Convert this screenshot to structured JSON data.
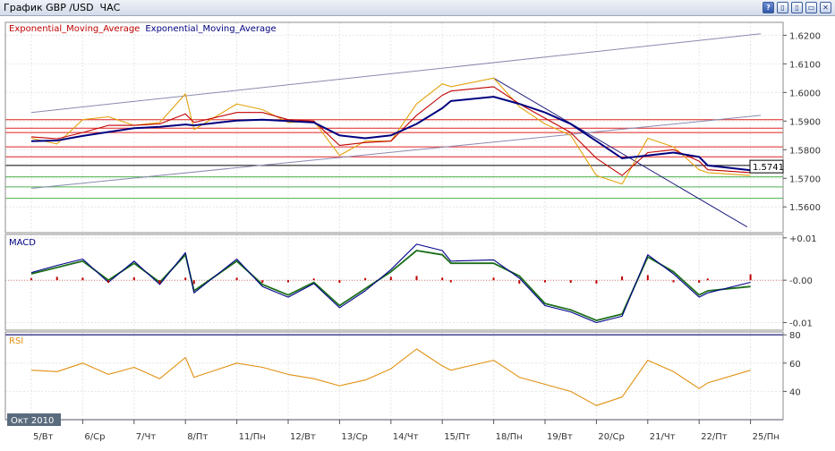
{
  "window": {
    "title": "График GBP /USD  ЧАС",
    "buttons": {
      "help": "?",
      "restore": "▯",
      "tile": "▯",
      "minimize": "▭",
      "close": "✕"
    }
  },
  "chart_data": [
    {
      "type": "line",
      "panel": "price",
      "legend": [
        "Exponential_Moving_Average",
        "Exponential_Moving_Average"
      ],
      "legend_colors": [
        "#c00000",
        "#000080"
      ],
      "ylim": [
        1.551,
        1.6245
      ],
      "yticks": [
        "1.6200",
        "1.6100",
        "1.6000",
        "1.5900",
        "1.5800",
        "1.5700",
        "1.5600"
      ],
      "ytick_values": [
        1.62,
        1.61,
        1.6,
        1.59,
        1.58,
        1.57,
        1.56
      ],
      "current_price_label": "1.5741",
      "current_price": 1.5741,
      "x": [
        5,
        5.5,
        6,
        6.5,
        7,
        7.5,
        8,
        8.5,
        11,
        11.5,
        12,
        12.5,
        13,
        13.5,
        14,
        14.5,
        15,
        15.5,
        18,
        18.5,
        19,
        19.5,
        20,
        20.5,
        21,
        21.5,
        22,
        22.5,
        25
      ],
      "series": [
        {
          "values": [
            1.584,
            1.582,
            1.5905,
            1.5915,
            1.5885,
            1.5895,
            1.5995,
            1.587,
            1.596,
            1.594,
            1.5895,
            1.59,
            1.578,
            1.583,
            1.583,
            1.596,
            1.603,
            1.602,
            1.605,
            1.595,
            1.589,
            1.585,
            1.571,
            1.568,
            1.584,
            1.581,
            1.573,
            1.572,
            1.571
          ],
          "color": "#e3a30c"
        },
        {
          "values": [
            1.5845,
            1.5838,
            1.586,
            1.5885,
            1.5885,
            1.589,
            1.5925,
            1.5895,
            1.593,
            1.593,
            1.5905,
            1.59,
            1.5815,
            1.5825,
            1.583,
            1.592,
            1.599,
            1.6005,
            1.602,
            1.596,
            1.591,
            1.586,
            1.577,
            1.571,
            1.579,
            1.58,
            1.576,
            1.573,
            1.572
          ],
          "color": "#c00000"
        },
        {
          "values": [
            1.583,
            1.5832,
            1.5848,
            1.5862,
            1.5875,
            1.588,
            1.5888,
            1.5885,
            1.5902,
            1.5905,
            1.59,
            1.5895,
            1.585,
            1.584,
            1.585,
            1.589,
            1.5945,
            1.597,
            1.5985,
            1.596,
            1.593,
            1.589,
            1.583,
            1.577,
            1.578,
            1.579,
            1.5775,
            1.5745,
            1.5728
          ],
          "color": "#000080"
        }
      ],
      "horizontal_levels_red": [
        1.5905,
        1.5875,
        1.586,
        1.581,
        1.5775
      ],
      "horizontal_levels_black": [
        1.5745
      ],
      "horizontal_levels_green": [
        1.5705,
        1.567,
        1.563
      ],
      "trend_lines": [
        {
          "from": [
            5,
            1.593
          ],
          "to": [
            25.2,
            1.6205
          ],
          "color": "#8a8ab0"
        },
        {
          "from": [
            5,
            1.5665
          ],
          "to": [
            25.2,
            1.592
          ],
          "color": "#8a8ab0"
        },
        {
          "from": [
            18,
            1.605
          ],
          "to": [
            24.8,
            1.553
          ],
          "color": "#202080"
        }
      ]
    },
    {
      "type": "line",
      "panel": "macd",
      "title": "MACD",
      "ylim": [
        -0.0118,
        0.0108
      ],
      "yticks": [
        "+0.01",
        "-0.00",
        "-0.01"
      ],
      "ytick_values": [
        0.01,
        0.0,
        -0.01
      ],
      "x": [
        5,
        5.5,
        6,
        6.5,
        7,
        7.5,
        8,
        8.5,
        11,
        11.5,
        12,
        12.5,
        13,
        13.5,
        14,
        14.5,
        15,
        15.5,
        18,
        18.5,
        19,
        19.5,
        20,
        20.5,
        21,
        21.5,
        22,
        22.5,
        25
      ],
      "series": [
        {
          "values": [
            0.0015,
            0.003,
            0.0045,
            0.0,
            0.004,
            -0.0005,
            0.006,
            -0.0025,
            0.0045,
            -0.001,
            -0.0035,
            -0.0005,
            -0.006,
            -0.002,
            0.002,
            0.007,
            0.006,
            0.004,
            0.004,
            0.001,
            -0.0055,
            -0.007,
            -0.0095,
            -0.008,
            0.0055,
            0.002,
            -0.0035,
            -0.0025,
            -0.0015
          ],
          "color": "#1a6e1a"
        },
        {
          "values": [
            0.0018,
            0.0035,
            0.005,
            -0.0005,
            0.0045,
            -0.001,
            0.0065,
            -0.003,
            0.005,
            -0.0015,
            -0.004,
            -0.0008,
            -0.0065,
            -0.0025,
            0.0025,
            0.0085,
            0.007,
            0.0045,
            0.0048,
            0.0005,
            -0.006,
            -0.0075,
            -0.01,
            -0.0085,
            0.006,
            0.0015,
            -0.004,
            -0.003,
            -0.0005
          ],
          "color": "#00008b"
        }
      ],
      "histogram": [
        0.0005,
        0.0008,
        0.0006,
        -0.0006,
        0.0007,
        -0.0008,
        0.0006,
        -0.0009,
        0.0006,
        -0.0006,
        -0.0005,
        0.0004,
        -0.0006,
        0.0005,
        0.0008,
        0.001,
        0.0006,
        -0.0005,
        0.0006,
        -0.0008,
        -0.0005,
        -0.0006,
        -0.0008,
        0.0009,
        0.0012,
        -0.0005,
        -0.0006,
        0.0004,
        0.0014
      ],
      "histogram_color": "#c00000"
    },
    {
      "type": "line",
      "panel": "rsi",
      "title": "RSI",
      "ylim": [
        20,
        82
      ],
      "yticks": [
        "80",
        "60",
        "40"
      ],
      "ytick_values": [
        80,
        60,
        40
      ],
      "levels": [
        80,
        20
      ],
      "x": [
        5,
        5.5,
        6,
        6.5,
        7,
        7.5,
        8,
        8.5,
        11,
        11.5,
        12,
        12.5,
        13,
        13.5,
        14,
        14.5,
        15,
        15.5,
        18,
        18.5,
        19,
        19.5,
        20,
        20.5,
        21,
        21.5,
        22,
        22.5,
        25
      ],
      "series": [
        {
          "values": [
            55,
            54,
            60,
            52,
            57,
            49,
            64,
            50,
            60,
            57,
            52,
            49,
            44,
            48,
            56,
            70,
            58,
            55,
            62,
            50,
            45,
            40,
            30,
            36,
            62,
            54,
            42,
            46,
            55
          ],
          "color": "#e29010"
        }
      ],
      "period_label": "Окт 2010"
    }
  ],
  "x_axis": {
    "labels": [
      "5/Вт",
      "6/Ср",
      "7/Чт",
      "8/Пт",
      "11/Пн",
      "12/Вт",
      "13/Ср",
      "14/Чт",
      "15/Пт",
      "18/Пн",
      "19/Вт",
      "20/Ср",
      "21/Чт",
      "22/Пт",
      "25/Пн"
    ],
    "positions": [
      5,
      6,
      7,
      8,
      11,
      12,
      13,
      14,
      15,
      18,
      19,
      20,
      21,
      22,
      25
    ]
  }
}
